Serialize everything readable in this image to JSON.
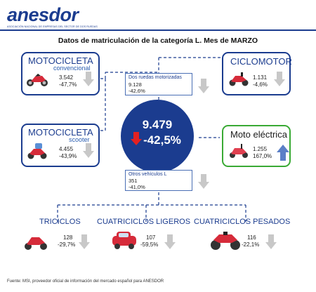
{
  "logo": {
    "word": "anesdor",
    "tagline": "ASOCIACIÓN NACIONAL DE EMPRESAS DEL SECTOR DE DOS RUEDAS"
  },
  "title": "Datos de matriculación de la categoría L. Mes de MARZO",
  "total": {
    "value": "9.479",
    "change": "-42,5%"
  },
  "dos_ruedas": {
    "label": "Dos ruedas motorizadas",
    "value": "9.128",
    "change": "-42,6%"
  },
  "otros": {
    "label": "Otros vehículos L",
    "value": "351",
    "change": "-41,0%"
  },
  "moto_conv": {
    "title": "MOTOCICLETA",
    "subtitle": "convencional",
    "value": "3.542",
    "change": "-47,7%",
    "icon": "motorcycle-icon"
  },
  "moto_scooter": {
    "title": "MOTOCICLETA",
    "subtitle": "scooter",
    "value": "4.455",
    "change": "-43,9%",
    "icon": "scooter-icon"
  },
  "ciclomotor": {
    "title": "CICLOMOTOR",
    "value": "1.131",
    "change": "-4,6%",
    "icon": "moped-icon"
  },
  "moto_electrica": {
    "title": "Moto eléctrica",
    "value": "1.255",
    "change": "167,0%",
    "icon": "electric-scooter-icon"
  },
  "triciclos": {
    "title": "TRICICLOS",
    "value": "128",
    "change": "-29,7%",
    "icon": "trike-icon"
  },
  "cuad_ligeros": {
    "title": "CUATRICICLOS LIGEROS",
    "value": "107",
    "change": "-59,5%",
    "icon": "microcar-icon"
  },
  "cuad_pesados": {
    "title": "CUATRICICLOS PESADOS",
    "value": "116",
    "change": "-22,1%",
    "icon": "quad-icon"
  },
  "footer": "Fuente: MSI, proveedor oficial de información del mercado español para ANESDOR",
  "colors": {
    "brand": "#1b3c8f",
    "green": "#3aaa35",
    "down": "#e32121",
    "up": "#5b7fc7",
    "neutral": "#c8c8c8"
  }
}
